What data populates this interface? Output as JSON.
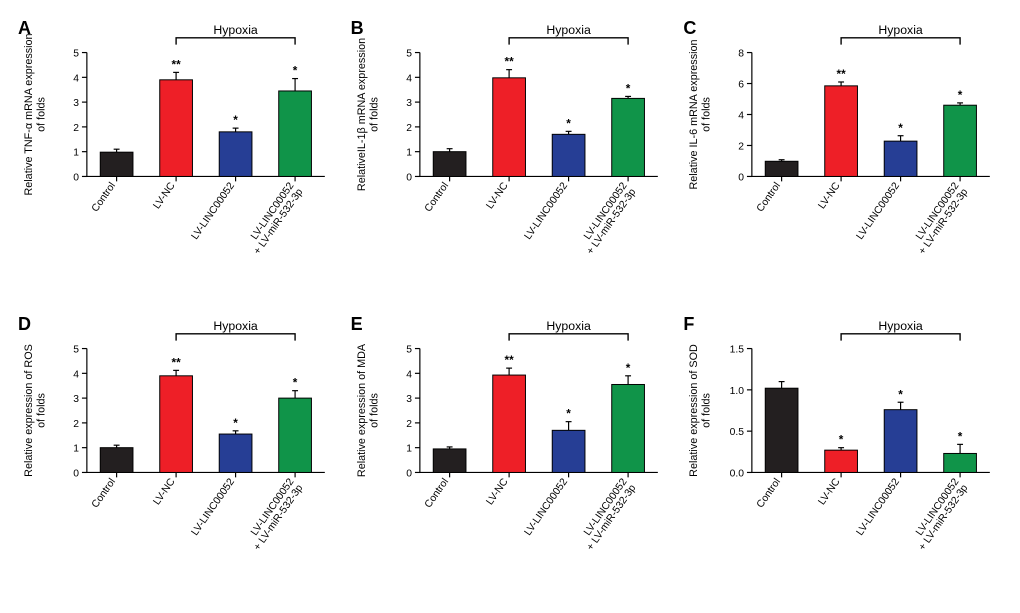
{
  "figure": {
    "background": "#ffffff",
    "panel_letters": [
      "A",
      "B",
      "C",
      "D",
      "E",
      "F"
    ],
    "letter_fontsize": 18,
    "letter_fontweight": 700,
    "categories": [
      "Control",
      "LV-NC",
      "LV-LINC00052",
      "LV-LINC00052\n+ LV-miR-532-3p"
    ],
    "category_label_fontsize": 10.5,
    "category_label_rotation_deg": -55,
    "bar_colors": [
      "#231f20",
      "#ee1f27",
      "#263e95",
      "#109449"
    ],
    "bar_border": "#000000",
    "bar_width": 0.55,
    "axis_color": "#000000",
    "axis_linewidth": 1.2,
    "tick_fontsize": 10.5,
    "ylabel_fontsize": 11,
    "errorbar_color": "#000000",
    "errorbar_cap": 6,
    "sig_fontsize": 12,
    "hypoxia_label": "Hypoxia",
    "hypoxia_bar_linewidth": 1.4,
    "hypoxia_fontsize": 12.5,
    "panels": [
      {
        "letter": "A",
        "ylabel": "Relative TNF-α mRNA expression\nof folds",
        "ylim": [
          0,
          5
        ],
        "ytick_step": 1,
        "values": [
          0.98,
          3.9,
          1.8,
          3.45
        ],
        "errors": [
          0.12,
          0.3,
          0.15,
          0.5
        ],
        "sig": [
          "",
          "**",
          "*",
          "*"
        ]
      },
      {
        "letter": "B",
        "ylabel": "RelativeIL-1β mRNA expression\nof folds",
        "ylim": [
          0,
          5
        ],
        "ytick_step": 1,
        "values": [
          1.0,
          3.98,
          1.7,
          3.15
        ],
        "errors": [
          0.12,
          0.33,
          0.12,
          0.08
        ],
        "sig": [
          "",
          "**",
          "*",
          "*"
        ]
      },
      {
        "letter": "C",
        "ylabel": "Relative IL-6 mRNA expression\nof folds",
        "ylim": [
          0,
          8
        ],
        "ytick_step": 2,
        "values": [
          0.98,
          5.85,
          2.28,
          4.6
        ],
        "errors": [
          0.1,
          0.25,
          0.35,
          0.15
        ],
        "sig": [
          "",
          "**",
          "*",
          "*"
        ]
      },
      {
        "letter": "D",
        "ylabel": "Relative expression of ROS\nof folds",
        "ylim": [
          0,
          5
        ],
        "ytick_step": 1,
        "values": [
          1.0,
          3.9,
          1.55,
          3.0
        ],
        "errors": [
          0.1,
          0.22,
          0.13,
          0.3
        ],
        "sig": [
          "",
          "**",
          "*",
          "*"
        ]
      },
      {
        "letter": "E",
        "ylabel": "Relative expression of MDA\nof folds",
        "ylim": [
          0,
          5
        ],
        "ytick_step": 1,
        "values": [
          0.95,
          3.93,
          1.7,
          3.55
        ],
        "errors": [
          0.08,
          0.28,
          0.35,
          0.35
        ],
        "sig": [
          "",
          "**",
          "*",
          "*"
        ]
      },
      {
        "letter": "F",
        "ylabel": "Relative expression of SOD\nof folds",
        "ylim": [
          0,
          1.5
        ],
        "ytick_step": 0.5,
        "values": [
          1.02,
          0.27,
          0.76,
          0.23
        ],
        "errors": [
          0.08,
          0.03,
          0.09,
          0.11
        ],
        "sig": [
          "",
          "*",
          "*",
          "*"
        ]
      }
    ]
  }
}
